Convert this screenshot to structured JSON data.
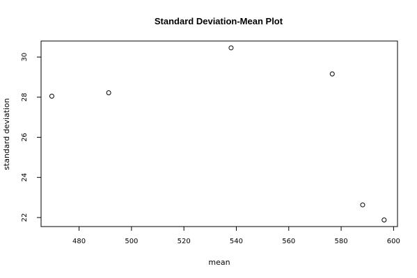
{
  "chart_data": {
    "type": "scatter",
    "title": "Standard Deviation-Mean Plot",
    "xlabel": "mean",
    "ylabel": "standard deviation",
    "xlim": [
      465.5,
      601.5
    ],
    "ylim": [
      21.55,
      30.8
    ],
    "x_ticks": [
      480,
      500,
      520,
      540,
      560,
      580,
      600
    ],
    "y_ticks": [
      22,
      24,
      26,
      28,
      30
    ],
    "x": [
      469.6,
      491.3,
      538.0,
      576.6,
      588.2,
      596.4
    ],
    "y": [
      28.05,
      28.22,
      30.46,
      29.16,
      22.63,
      21.88
    ],
    "grid": false,
    "marker": "open-circle"
  }
}
